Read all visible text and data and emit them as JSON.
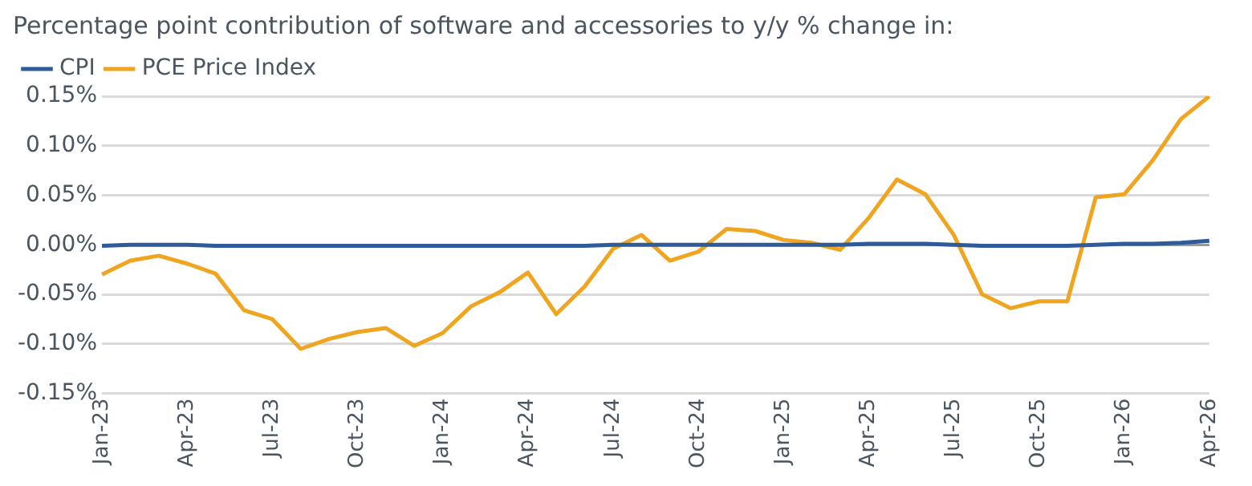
{
  "chart_data": {
    "type": "line",
    "title": "Percentage point contribution of software and accessories to y/y % change in:",
    "categories": [
      "Jan-23",
      null,
      null,
      "Apr-23",
      null,
      null,
      "Jul-23",
      null,
      null,
      "Oct-23",
      null,
      null,
      "Jan-24",
      null,
      null,
      "Apr-24",
      null,
      null,
      "Jul-24",
      null,
      null,
      "Oct-24",
      null,
      null,
      "Jan-25",
      null,
      null,
      "Apr-25",
      null,
      null,
      "Jul-25",
      null,
      null,
      "Oct-25",
      null,
      null,
      "Jan-26",
      null,
      null,
      "Apr-26"
    ],
    "series": [
      {
        "name": "CPI",
        "color": "#2e5b9a",
        "values": [
          -0.001,
          0,
          0,
          0,
          -0.001,
          -0.001,
          -0.001,
          -0.001,
          -0.001,
          -0.001,
          -0.001,
          -0.001,
          -0.001,
          -0.001,
          -0.001,
          -0.001,
          -0.001,
          -0.001,
          0,
          0,
          0,
          0,
          0,
          0,
          0,
          0,
          0,
          0.001,
          0.001,
          0.001,
          0,
          -0.001,
          -0.001,
          -0.001,
          -0.001,
          0,
          0.001,
          0.001,
          0.002,
          0.004
        ]
      },
      {
        "name": "PCE Price Index",
        "color": "#f0a520",
        "values": [
          -0.03,
          -0.016,
          -0.011,
          -0.019,
          -0.029,
          -0.066,
          -0.075,
          -0.105,
          -0.095,
          -0.088,
          -0.084,
          -0.102,
          -0.089,
          -0.062,
          -0.048,
          -0.028,
          -0.07,
          -0.042,
          -0.004,
          0.01,
          -0.016,
          -0.007,
          0.016,
          0.014,
          0.005,
          0.002,
          -0.005,
          0.027,
          0.066,
          0.051,
          0.01,
          -0.05,
          -0.064,
          -0.057,
          -0.057,
          0.048,
          0.051,
          0.085,
          0.127,
          0.15
        ]
      }
    ],
    "ylim": [
      -0.15,
      0.15
    ],
    "yticks": [
      {
        "value": -0.15,
        "label": "-0.15%"
      },
      {
        "value": -0.1,
        "label": "-0.10%"
      },
      {
        "value": -0.05,
        "label": "-0.05%"
      },
      {
        "value": 0,
        "label": "0.00%"
      },
      {
        "value": 0.05,
        "label": "0.05%"
      },
      {
        "value": 0.1,
        "label": "0.10%"
      },
      {
        "value": 0.15,
        "label": "0.15%"
      }
    ],
    "grid": "y",
    "legend": "top left",
    "marker": "none",
    "line_style": "solid"
  }
}
